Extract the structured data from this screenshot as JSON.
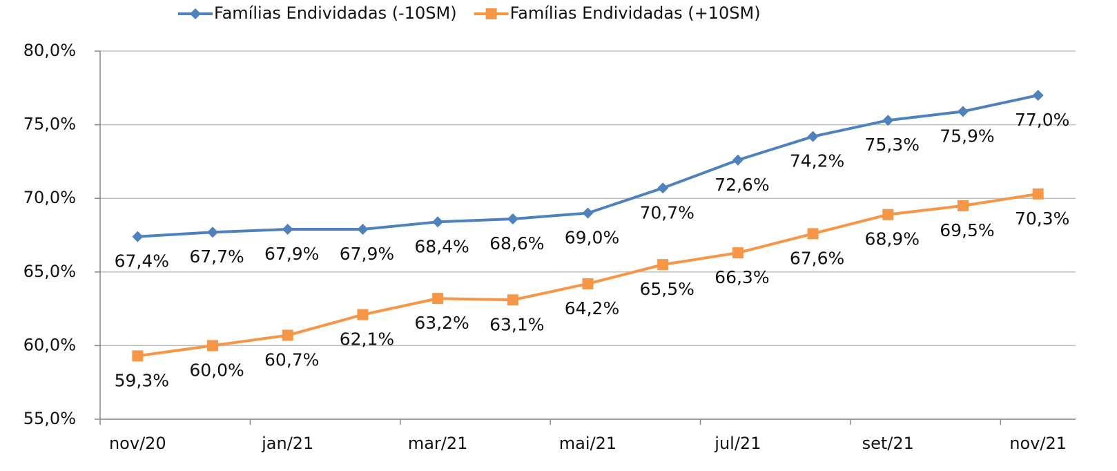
{
  "chart_data": {
    "type": "line",
    "categories": [
      "nov/20",
      null,
      "jan/21",
      null,
      "mar/21",
      null,
      "mai/21",
      null,
      "jul/21",
      null,
      "set/21",
      null,
      "nov/21"
    ],
    "series": [
      {
        "name": "Famílias Endividadas (-10SM)",
        "color": "#4f81bd",
        "marker": "diamond",
        "values": [
          67.4,
          67.7,
          67.9,
          67.9,
          68.4,
          68.6,
          69.0,
          70.7,
          72.6,
          74.2,
          75.3,
          75.9,
          77.0
        ],
        "value_labels": [
          "67,4%",
          "67,7%",
          "67,9%",
          "67,9%",
          "68,4%",
          "68,6%",
          "69,0%",
          "70,7%",
          "72,6%",
          "74,2%",
          "75,3%",
          "75,9%",
          "77,0%"
        ]
      },
      {
        "name": "Famílias Endividadas (+10SM)",
        "color": "#f79646",
        "marker": "square",
        "values": [
          59.3,
          60.0,
          60.7,
          62.1,
          63.2,
          63.1,
          64.2,
          65.5,
          66.3,
          67.6,
          68.9,
          69.5,
          70.3
        ],
        "value_labels": [
          "59,3%",
          "60,0%",
          "60,7%",
          "62,1%",
          "63,2%",
          "63,1%",
          "64,2%",
          "65,5%",
          "66,3%",
          "67,6%",
          "68,9%",
          "69,5%",
          "70,3%"
        ]
      }
    ],
    "ylim": [
      55,
      80
    ],
    "yticks": [
      {
        "value": 55,
        "label": "55,0%"
      },
      {
        "value": 60,
        "label": "60,0%"
      },
      {
        "value": 65,
        "label": "65,0%"
      },
      {
        "value": 70,
        "label": "70,0%"
      },
      {
        "value": 75,
        "label": "75,0%"
      },
      {
        "value": 80,
        "label": "80,0%"
      }
    ],
    "grid": true,
    "legend": "top"
  }
}
